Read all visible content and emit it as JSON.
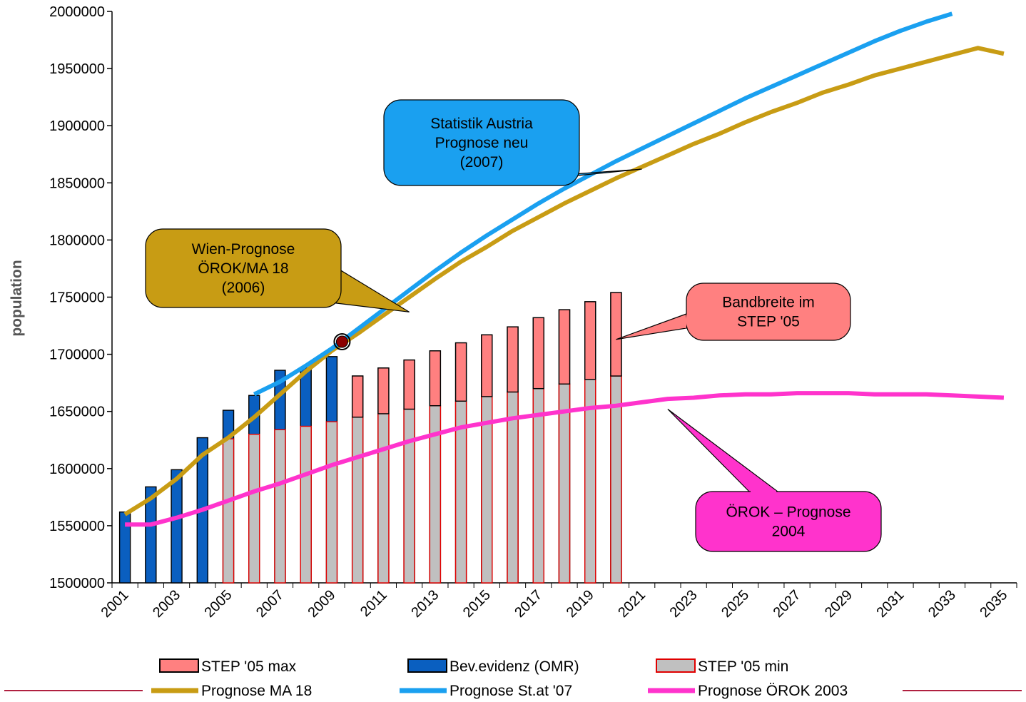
{
  "chart_data": {
    "type": "bar",
    "ylabel": "population",
    "ylim": [
      1500000,
      2000000
    ],
    "yticks": [
      1500000,
      1550000,
      1600000,
      1650000,
      1700000,
      1750000,
      1800000,
      1850000,
      1900000,
      1950000,
      2000000
    ],
    "x_range": [
      2001,
      2035
    ],
    "x_tick_labels": [
      "2001",
      "2003",
      "2005",
      "2007",
      "2009",
      "2011",
      "2013",
      "2015",
      "2017",
      "2019",
      "2021",
      "2023",
      "2025",
      "2027",
      "2029",
      "2031",
      "2033",
      "2035"
    ],
    "bar_series": [
      {
        "name": "Bev.evidenz (OMR)",
        "color": "#0A5FC0",
        "points": [
          [
            2001,
            1562000
          ],
          [
            2002,
            1584000
          ],
          [
            2003,
            1599000
          ],
          [
            2004,
            1627000
          ],
          [
            2005,
            1651000
          ],
          [
            2006,
            1664000
          ],
          [
            2007,
            1686000
          ],
          [
            2008,
            1688000
          ],
          [
            2009,
            1698000
          ]
        ]
      },
      {
        "name": "STEP '05 min",
        "color": "#C0C0C0",
        "stroke": "#E00000",
        "points": [
          [
            2005,
            1626000
          ],
          [
            2006,
            1630000
          ],
          [
            2007,
            1634000
          ],
          [
            2008,
            1637000
          ],
          [
            2009,
            1641000
          ],
          [
            2010,
            1645000
          ],
          [
            2011,
            1648000
          ],
          [
            2012,
            1652000
          ],
          [
            2013,
            1655000
          ],
          [
            2014,
            1659000
          ],
          [
            2015,
            1663000
          ],
          [
            2016,
            1667000
          ],
          [
            2017,
            1670000
          ],
          [
            2018,
            1674000
          ],
          [
            2019,
            1678000
          ],
          [
            2020,
            1681000
          ]
        ]
      },
      {
        "name": "STEP '05 max",
        "color": "#FF8080",
        "stroke": "#000000",
        "points": [
          [
            2010,
            1681000
          ],
          [
            2011,
            1688000
          ],
          [
            2012,
            1695000
          ],
          [
            2013,
            1703000
          ],
          [
            2014,
            1710000
          ],
          [
            2015,
            1717000
          ],
          [
            2016,
            1724000
          ],
          [
            2017,
            1732000
          ],
          [
            2018,
            1739000
          ],
          [
            2019,
            1746000
          ],
          [
            2020,
            1754000
          ]
        ]
      }
    ],
    "line_series": [
      {
        "name": "Prognose MA 18",
        "color": "#C89C14",
        "points": [
          [
            2001,
            1560000
          ],
          [
            2002,
            1574000
          ],
          [
            2003,
            1591000
          ],
          [
            2004,
            1612000
          ],
          [
            2005,
            1627000
          ],
          [
            2006,
            1645000
          ],
          [
            2007,
            1665000
          ],
          [
            2008,
            1685000
          ],
          [
            2009,
            1703000
          ],
          [
            2010,
            1718000
          ],
          [
            2011,
            1734000
          ],
          [
            2012,
            1750000
          ],
          [
            2013,
            1766000
          ],
          [
            2014,
            1781000
          ],
          [
            2015,
            1794000
          ],
          [
            2016,
            1808000
          ],
          [
            2017,
            1820000
          ],
          [
            2018,
            1832000
          ],
          [
            2019,
            1843000
          ],
          [
            2020,
            1854000
          ],
          [
            2021,
            1864000
          ],
          [
            2022,
            1874000
          ],
          [
            2023,
            1884000
          ],
          [
            2024,
            1893000
          ],
          [
            2025,
            1903000
          ],
          [
            2026,
            1912000
          ],
          [
            2027,
            1920000
          ],
          [
            2028,
            1929000
          ],
          [
            2029,
            1936000
          ],
          [
            2030,
            1944000
          ],
          [
            2031,
            1950000
          ],
          [
            2032,
            1956000
          ],
          [
            2033,
            1962000
          ],
          [
            2034,
            1968000
          ],
          [
            2035,
            1963000
          ]
        ]
      },
      {
        "name": "Prognose St.at '07",
        "color": "#1AA0F0",
        "points": [
          [
            2006,
            1665000
          ],
          [
            2007,
            1676000
          ],
          [
            2008,
            1690000
          ],
          [
            2009,
            1705000
          ],
          [
            2010,
            1722000
          ],
          [
            2011,
            1739000
          ],
          [
            2012,
            1756000
          ],
          [
            2013,
            1773000
          ],
          [
            2014,
            1789000
          ],
          [
            2015,
            1804000
          ],
          [
            2016,
            1818000
          ],
          [
            2017,
            1832000
          ],
          [
            2018,
            1845000
          ],
          [
            2019,
            1857000
          ],
          [
            2020,
            1869000
          ],
          [
            2021,
            1880000
          ],
          [
            2022,
            1891000
          ],
          [
            2023,
            1902000
          ],
          [
            2024,
            1913000
          ],
          [
            2025,
            1924000
          ],
          [
            2026,
            1934000
          ],
          [
            2027,
            1944000
          ],
          [
            2028,
            1954000
          ],
          [
            2029,
            1964000
          ],
          [
            2030,
            1974000
          ],
          [
            2031,
            1983000
          ],
          [
            2032,
            1991000
          ],
          [
            2033,
            1998000
          ]
        ]
      },
      {
        "name": "Prognose ÖROK 2003",
        "color": "#FF33CC",
        "points": [
          [
            2001,
            1551000
          ],
          [
            2002,
            1551000
          ],
          [
            2003,
            1557000
          ],
          [
            2004,
            1564000
          ],
          [
            2005,
            1572000
          ],
          [
            2006,
            1580000
          ],
          [
            2007,
            1587000
          ],
          [
            2008,
            1595000
          ],
          [
            2009,
            1603000
          ],
          [
            2010,
            1610000
          ],
          [
            2011,
            1617000
          ],
          [
            2012,
            1624000
          ],
          [
            2013,
            1630000
          ],
          [
            2014,
            1636000
          ],
          [
            2015,
            1640000
          ],
          [
            2016,
            1644000
          ],
          [
            2017,
            1647000
          ],
          [
            2018,
            1650000
          ],
          [
            2019,
            1653000
          ],
          [
            2020,
            1655000
          ],
          [
            2021,
            1658000
          ],
          [
            2022,
            1661000
          ],
          [
            2023,
            1662000
          ],
          [
            2024,
            1664000
          ],
          [
            2025,
            1665000
          ],
          [
            2026,
            1665000
          ],
          [
            2027,
            1666000
          ],
          [
            2028,
            1666000
          ],
          [
            2029,
            1666000
          ],
          [
            2030,
            1665000
          ],
          [
            2031,
            1665000
          ],
          [
            2032,
            1665000
          ],
          [
            2033,
            1664000
          ],
          [
            2034,
            1663000
          ],
          [
            2035,
            1662000
          ]
        ]
      }
    ],
    "marker": {
      "x": 2009.4,
      "y": 1711000,
      "color": "#8B0000"
    },
    "annotations": [
      {
        "lines": [
          "Statistik Austria",
          "Prognose neu",
          "(2007)"
        ],
        "color": "#1AA0F0",
        "target": [
          2021,
          1862000
        ]
      },
      {
        "lines": [
          "Wien-Prognose",
          "ÖROK/MA 18",
          "(2006)"
        ],
        "color": "#C89C14",
        "target": [
          2012,
          1737000
        ]
      },
      {
        "lines": [
          "Bandbreite im",
          "STEP '05"
        ],
        "color": "#FF8080",
        "target": [
          2020,
          1713000
        ]
      },
      {
        "lines": [
          "ÖROK – Prognose",
          "2004"
        ],
        "color": "#FF33CC",
        "target": [
          2022,
          1652000
        ]
      }
    ],
    "legend": [
      {
        "label": "STEP '05 max",
        "kind": "box",
        "fill": "#FF8080",
        "stroke": "#000000"
      },
      {
        "label": "Bev.evidenz (OMR)",
        "kind": "box",
        "fill": "#0A5FC0",
        "stroke": "#000000"
      },
      {
        "label": "STEP '05 min",
        "kind": "box",
        "fill": "#C0C0C0",
        "stroke": "#E00000"
      },
      {
        "label": "Prognose MA 18",
        "kind": "line",
        "color": "#C89C14"
      },
      {
        "label": "Prognose St.at '07",
        "kind": "line",
        "color": "#1AA0F0"
      },
      {
        "label": "Prognose ÖROK 2003",
        "kind": "line",
        "color": "#FF33CC"
      }
    ],
    "footer_rule_color": "#B02040"
  }
}
